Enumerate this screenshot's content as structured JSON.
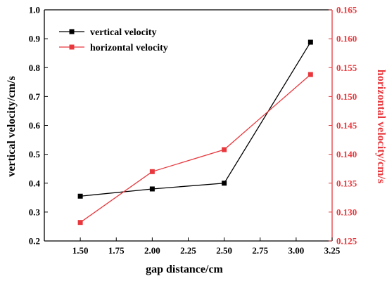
{
  "chart_data": {
    "type": "line",
    "title": "",
    "x": [
      1.5,
      2.0,
      2.5,
      3.1
    ],
    "xlabel": "gap distance/cm",
    "xlim": [
      1.25,
      3.25
    ],
    "xticks": [
      "1.50",
      "1.75",
      "2.00",
      "2.25",
      "2.50",
      "2.75",
      "3.00",
      "3.25"
    ],
    "y_left": {
      "label": "vertical velocity/cm/s",
      "lim": [
        0.2,
        1.0
      ],
      "ticks": [
        "0.2",
        "0.3",
        "0.4",
        "0.5",
        "0.6",
        "0.7",
        "0.8",
        "0.9",
        "1.0"
      ],
      "color": "#000000"
    },
    "y_right": {
      "label": "horizontal velocity/cm/s",
      "lim": [
        0.125,
        0.165
      ],
      "ticks": [
        "0.125",
        "0.130",
        "0.135",
        "0.140",
        "0.145",
        "0.150",
        "0.155",
        "0.160",
        "0.165"
      ],
      "color": "#e8383d"
    },
    "series": [
      {
        "name": "vertical velocity",
        "axis": "left",
        "color": "#000000",
        "marker": "square",
        "values": [
          0.355,
          0.38,
          0.4,
          0.888
        ]
      },
      {
        "name": "horizontal velocity",
        "axis": "right",
        "color": "#e8383d",
        "marker": "square",
        "values": [
          0.1282,
          0.137,
          0.1408,
          0.1538
        ]
      }
    ],
    "legend": "top-left",
    "grid": false
  }
}
